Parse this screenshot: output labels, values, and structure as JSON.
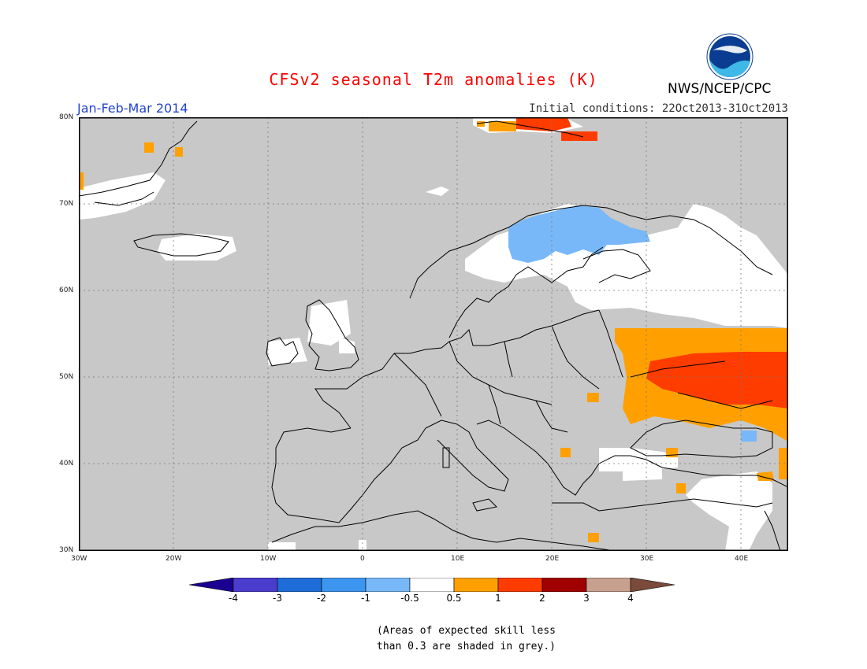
{
  "title": "CFSv2 seasonal T2m anomalies (K)",
  "season": "Jan-Feb-Mar 2014",
  "org": "NWS/NCEP/CPC",
  "initial_conditions": "Initial conditions: 22Oct2013-31Oct2013",
  "logo_text": "NOAA",
  "colors": {
    "title": "#ff0000",
    "season": "#2244cc",
    "grey_mask": "#c8c8c8",
    "land_outline": "#000000",
    "ocean_grey": "#c8c8c8"
  },
  "lat_ticks": [
    "80N",
    "70N",
    "60N",
    "50N",
    "40N",
    "30N"
  ],
  "lon_ticks": [
    "30W",
    "20W",
    "10W",
    "0",
    "10E",
    "20E",
    "30E",
    "40E"
  ],
  "legend": {
    "bins": [
      {
        "color": "#1a0090"
      },
      {
        "color": "#4a3ccc"
      },
      {
        "color": "#1e6cd8"
      },
      {
        "color": "#3c96f0"
      },
      {
        "color": "#78b8f8"
      },
      {
        "color": "#ffffff"
      },
      {
        "color": "#ffa000"
      },
      {
        "color": "#ff3c00"
      },
      {
        "color": "#a00000"
      },
      {
        "color": "#c8a090"
      },
      {
        "color": "#7a4a3a"
      }
    ],
    "labels": [
      "-4",
      "-3",
      "-2",
      "-1",
      "-0.5",
      "0.5",
      "1",
      "2",
      "3",
      "4"
    ]
  },
  "note_line1": "(Areas of expected skill less",
  "note_line2": "than 0.3 are shaded in grey.)"
}
